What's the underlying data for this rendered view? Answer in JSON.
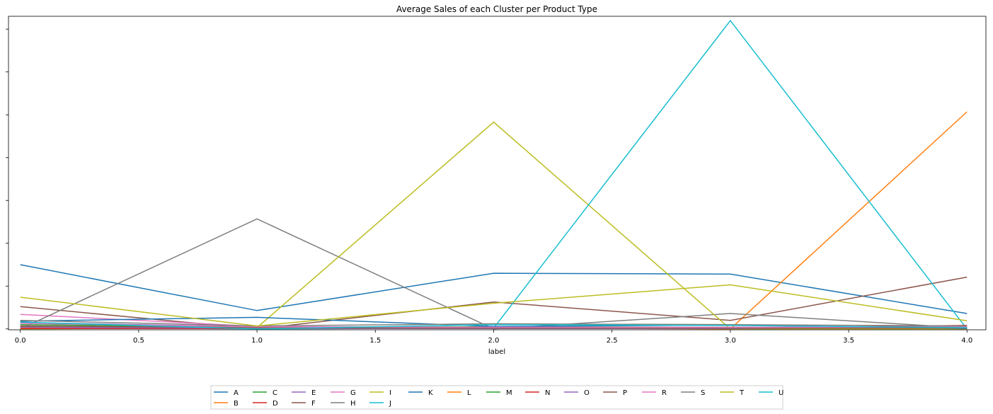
{
  "chart_data": {
    "type": "line",
    "title": "Average Sales of each Cluster per Product Type",
    "xlabel": "label",
    "ylabel": "",
    "xlim": [
      -0.05,
      4.08
    ],
    "ylim": [
      -0.02,
      7.3
    ],
    "x": [
      0,
      1,
      2,
      3,
      4
    ],
    "xticks": [
      "0.0",
      "0.5",
      "1.0",
      "1.5",
      "2.0",
      "2.5",
      "3.0",
      "3.5",
      "4.0"
    ],
    "xtick_values": [
      0,
      0.5,
      1,
      1.5,
      2,
      2.5,
      3,
      3.5,
      4
    ],
    "yticks_count": 8,
    "grid": false,
    "legend_position": "bottom-center",
    "series": [
      {
        "name": "A",
        "color": "#1f77b4",
        "values": [
          1.5,
          0.43,
          1.3,
          1.28,
          0.36
        ]
      },
      {
        "name": "B",
        "color": "#ff7f0e",
        "values": [
          0.05,
          0.02,
          0.02,
          0.0,
          5.07
        ]
      },
      {
        "name": "C",
        "color": "#2ca02c",
        "values": [
          0.1,
          0.04,
          0.05,
          0.04,
          0.04
        ]
      },
      {
        "name": "D",
        "color": "#d62728",
        "values": [
          0.02,
          0.01,
          0.01,
          0.01,
          0.02
        ]
      },
      {
        "name": "E",
        "color": "#9467bd",
        "values": [
          0.15,
          0.05,
          0.03,
          0.03,
          0.06
        ]
      },
      {
        "name": "F",
        "color": "#8c564b",
        "values": [
          0.52,
          0.0,
          0.63,
          0.2,
          1.21
        ]
      },
      {
        "name": "G",
        "color": "#e377c2",
        "values": [
          0.34,
          0.06,
          0.03,
          0.03,
          0.05
        ]
      },
      {
        "name": "H",
        "color": "#7f7f7f",
        "values": [
          0.0,
          2.57,
          0.0,
          0.36,
          0.02
        ]
      },
      {
        "name": "I",
        "color": "#bcbd22",
        "values": [
          0.0,
          0.03,
          4.83,
          0.0,
          0.0
        ]
      },
      {
        "name": "J",
        "color": "#17becf",
        "values": [
          0.04,
          0.0,
          0.02,
          7.2,
          0.0
        ]
      },
      {
        "name": "K",
        "color": "#1f77b4",
        "values": [
          0.18,
          0.27,
          0.06,
          0.09,
          0.01
        ]
      },
      {
        "name": "L",
        "color": "#ff7f0e",
        "values": [
          0.03,
          0.03,
          0.01,
          0.01,
          0.03
        ]
      },
      {
        "name": "M",
        "color": "#2ca02c",
        "values": [
          0.06,
          0.02,
          0.02,
          0.02,
          0.03
        ]
      },
      {
        "name": "N",
        "color": "#d62728",
        "values": [
          0.01,
          0.01,
          0.02,
          0.02,
          0.08
        ]
      },
      {
        "name": "O",
        "color": "#9467bd",
        "values": [
          0.04,
          0.02,
          0.01,
          0.01,
          0.04
        ]
      },
      {
        "name": "P",
        "color": "#8c564b",
        "values": [
          0.07,
          0.03,
          0.02,
          0.02,
          0.02
        ]
      },
      {
        "name": "R",
        "color": "#e377c2",
        "values": [
          0.13,
          0.05,
          0.04,
          0.04,
          0.05
        ]
      },
      {
        "name": "S",
        "color": "#7f7f7f",
        "values": [
          0.2,
          0.07,
          0.12,
          0.1,
          0.07
        ]
      },
      {
        "name": "T",
        "color": "#bcbd22",
        "values": [
          0.74,
          0.07,
          0.6,
          1.03,
          0.19
        ]
      },
      {
        "name": "U",
        "color": "#17becf",
        "values": [
          0.16,
          0.0,
          0.1,
          0.08,
          0.03
        ]
      }
    ]
  }
}
